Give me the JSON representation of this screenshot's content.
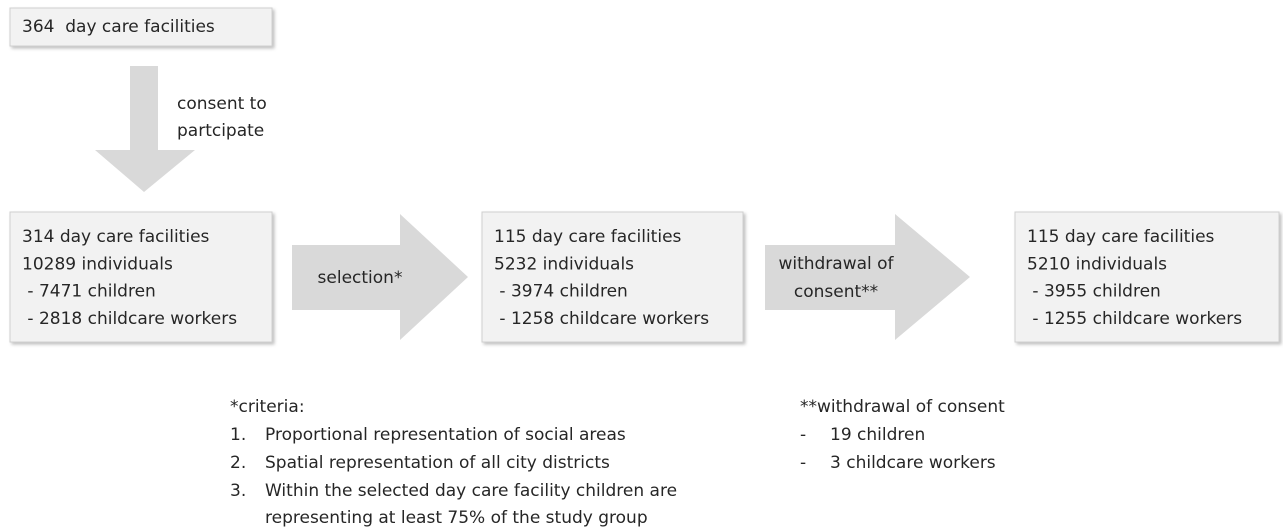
{
  "nodes": [
    {
      "lines": [
        "364  day care facilities"
      ]
    },
    {
      "lines": [
        "314 day care facilities",
        "10289 individuals",
        " - 7471 children",
        " - 2818 childcare workers"
      ]
    },
    {
      "lines": [
        "115 day care facilities",
        "5232 individuals",
        " - 3974 children",
        " - 1258 childcare workers"
      ]
    },
    {
      "lines": [
        "115 day care facilities",
        "5210 individuals",
        " - 3955 children",
        " - 1255 childcare workers"
      ]
    }
  ],
  "arrows": [
    {
      "label": [
        "consent to",
        "partcipate"
      ]
    },
    {
      "label": [
        "selection*"
      ]
    },
    {
      "label": [
        "withdrawal of",
        "consent**"
      ]
    }
  ],
  "notes": [
    {
      "title": "*criteria:",
      "items": [
        {
          "marker": "1.",
          "text": [
            "Proportional representation of social areas"
          ]
        },
        {
          "marker": "2.",
          "text": [
            "Spatial representation of all city districts"
          ]
        },
        {
          "marker": "3.",
          "text": [
            "Within the selected day care facility children are",
            "representing at least 75% of the study group"
          ]
        }
      ]
    },
    {
      "title": "**withdrawal of consent",
      "items": [
        {
          "marker": "-",
          "text": [
            "19 children"
          ]
        },
        {
          "marker": "-",
          "text": [
            "3 childcare workers"
          ]
        }
      ]
    }
  ]
}
